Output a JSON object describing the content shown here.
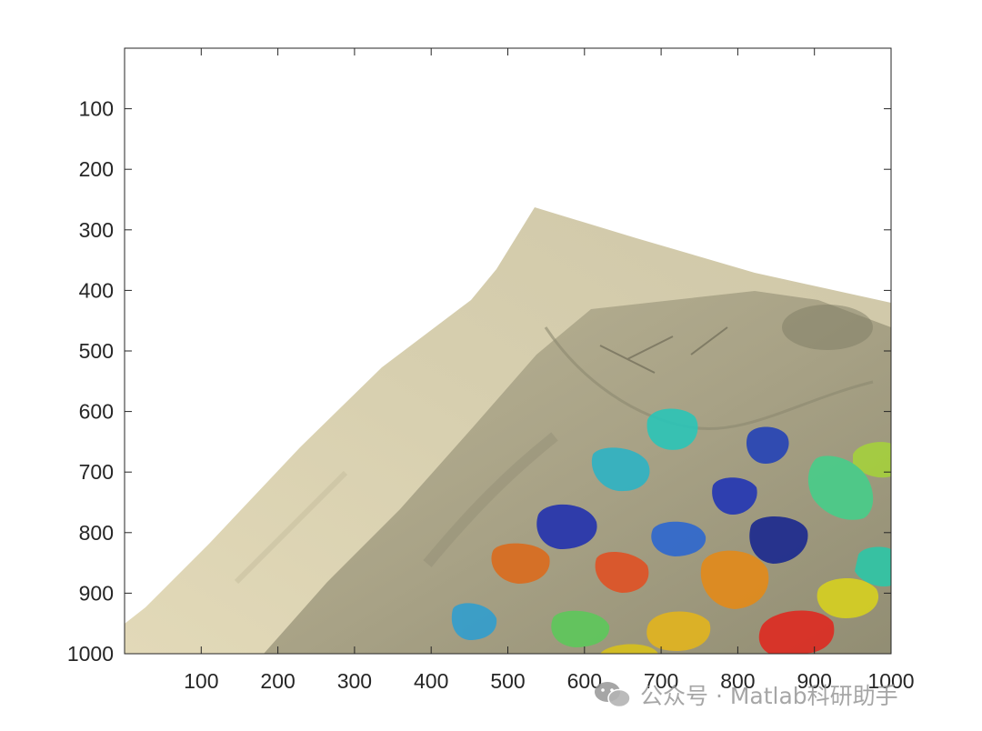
{
  "figure": {
    "x_axis": {
      "range": [
        0,
        1000
      ],
      "ticks": [
        100,
        200,
        300,
        400,
        500,
        600,
        700,
        800,
        900,
        1000
      ],
      "reversed": false
    },
    "y_axis": {
      "range": [
        0,
        1000
      ],
      "ticks": [
        100,
        200,
        300,
        400,
        500,
        600,
        700,
        800,
        900,
        1000
      ],
      "reversed": true
    },
    "box": true,
    "image_description_tokens": [
      "aerial-terrain",
      "sandy-slope",
      "segmented-shrubs"
    ],
    "background_color": "#ffffff",
    "axis_color": "#262626"
  },
  "segments_colors": {
    "blue_dark": "#1f2fb0",
    "blue": "#2a5fd0",
    "navy": "#16238a",
    "cyan": "#28c6b9",
    "teal": "#2eb0c4",
    "green": "#5bc95a",
    "mint": "#44d08a",
    "yellowgreen": "#a9d23a",
    "yellow": "#d8d21e",
    "gold": "#e4b51c",
    "orange": "#e58a17",
    "dark_orange": "#dc6a1b",
    "red_orange": "#e14f22",
    "red": "#e0281f"
  },
  "watermark": {
    "text": "公众号 · Matlab科研助手",
    "icon": "wechat-icon"
  }
}
